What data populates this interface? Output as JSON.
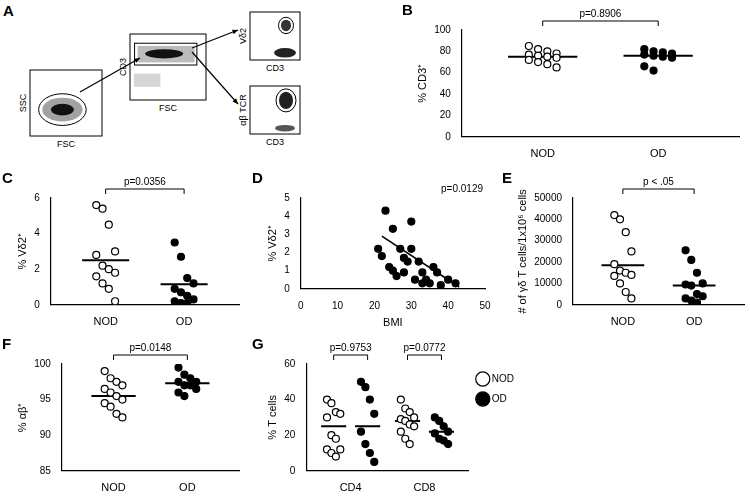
{
  "gating_diagram": {
    "panel_label": "A",
    "plots": [
      {
        "x_label": "FSC",
        "y_label": "SSC"
      },
      {
        "x_label": "FSC",
        "y_label": "CD3"
      },
      {
        "x_label": "CD3",
        "y_label": "Vδ2"
      },
      {
        "x_label": "CD3",
        "y_label": "αβ TCR"
      }
    ]
  },
  "chart_data": [
    {
      "type": "strip",
      "panel_label": "B",
      "y_label": "% CD3⁺",
      "ylim": [
        0,
        100
      ],
      "yticks": [
        0,
        20,
        40,
        60,
        80,
        100
      ],
      "grid": false,
      "groups": [
        {
          "category": "NOD",
          "marker": "open",
          "color": "#000000",
          "values": [
            85,
            82,
            80,
            78,
            77,
            76,
            75,
            74,
            72,
            70,
            68,
            65
          ],
          "mean": 75
        },
        {
          "category": "OD",
          "marker": "filled",
          "color": "#000000",
          "values": [
            82,
            80,
            79,
            78,
            77,
            76,
            75,
            74,
            66,
            62
          ],
          "mean": 76
        }
      ],
      "comparisons": [
        {
          "text": "p=0.8906",
          "between": [
            "NOD",
            "OD"
          ]
        }
      ]
    },
    {
      "type": "strip",
      "panel_label": "C",
      "y_label": "% Vδ2⁺",
      "ylim": [
        0,
        6
      ],
      "yticks": [
        0,
        2,
        4,
        6
      ],
      "grid": false,
      "groups": [
        {
          "category": "NOD",
          "marker": "open",
          "color": "#000000",
          "values": [
            5.6,
            5.4,
            4.5,
            3.0,
            2.8,
            2.2,
            2.0,
            1.8,
            1.6,
            1.2,
            0.9,
            0.2
          ],
          "mean": 2.5
        },
        {
          "category": "OD",
          "marker": "filled",
          "color": "#000000",
          "values": [
            3.5,
            2.7,
            1.5,
            1.2,
            0.9,
            0.7,
            0.5,
            0.3,
            0.2,
            0.1,
            0.1
          ],
          "mean": 1.15
        }
      ],
      "comparisons": [
        {
          "text": "p=0.0356",
          "between": [
            "NOD",
            "OD"
          ]
        }
      ]
    },
    {
      "type": "scatter",
      "panel_label": "D",
      "x_label": "BMI",
      "y_label": "% Vδ2⁺",
      "xlim": [
        0,
        50
      ],
      "xticks": [
        0,
        10,
        20,
        30,
        40,
        50
      ],
      "ylim": [
        0,
        5
      ],
      "yticks": [
        0,
        1,
        2,
        3,
        4,
        5
      ],
      "grid": false,
      "x": [
        21,
        22,
        23,
        24,
        25,
        25,
        26,
        27,
        28,
        28,
        29,
        30,
        30,
        31,
        32,
        33,
        33,
        34,
        35,
        36,
        37,
        38,
        40,
        42
      ],
      "values": [
        2.2,
        1.8,
        4.3,
        1.2,
        1.0,
        3.3,
        0.7,
        2.2,
        1.7,
        0.9,
        1.5,
        3.7,
        2.2,
        0.5,
        1.5,
        0.9,
        0.3,
        0.5,
        0.3,
        1.2,
        0.9,
        0.2,
        0.5,
        0.3
      ],
      "marker": "filled",
      "color": "#000000",
      "fit_line": {
        "x": [
          22,
          43
        ],
        "y": [
          2.9,
          0.1
        ]
      },
      "annotation": "p=0.0129"
    },
    {
      "type": "strip",
      "panel_label": "E",
      "y_label": "# of γδ T cells/1x10⁶ cells",
      "ylim": [
        0,
        50000
      ],
      "yticks": [
        0,
        10000,
        20000,
        30000,
        40000,
        50000
      ],
      "grid": false,
      "groups": [
        {
          "category": "NOD",
          "marker": "open",
          "color": "#000000",
          "values": [
            42000,
            40000,
            34000,
            25000,
            19000,
            16000,
            15000,
            14000,
            13500,
            10000,
            6000,
            3000
          ],
          "mean": 18500
        },
        {
          "category": "OD",
          "marker": "filled",
          "color": "#000000",
          "values": [
            25500,
            21000,
            15000,
            10000,
            9500,
            9000,
            5000,
            4000,
            3000,
            2000,
            1000
          ],
          "mean": 9000
        }
      ],
      "comparisons": [
        {
          "text": "p < .05",
          "between": [
            "NOD",
            "OD"
          ]
        }
      ]
    },
    {
      "type": "strip",
      "panel_label": "F",
      "y_label": "% αβ⁺",
      "ylim": [
        85,
        100
      ],
      "yticks": [
        85,
        90,
        95,
        100
      ],
      "grid": false,
      "groups": [
        {
          "category": "NOD",
          "marker": "open",
          "color": "#000000",
          "values": [
            99,
            98,
            97.5,
            97,
            96.5,
            96,
            95.5,
            95,
            94.5,
            94,
            93,
            92.5
          ],
          "mean": 95.5
        },
        {
          "category": "OD",
          "marker": "filled",
          "color": "#000000",
          "values": [
            99.5,
            98.5,
            98,
            97.5,
            97.5,
            97,
            97,
            96.5,
            96,
            95.5
          ],
          "mean": 97.3
        }
      ],
      "comparisons": [
        {
          "text": "p=0.0148",
          "between": [
            "NOD",
            "OD"
          ]
        }
      ]
    },
    {
      "type": "strip",
      "panel_label": "G",
      "y_label": "% T cells",
      "ylim": [
        0,
        60
      ],
      "yticks": [
        0,
        20,
        40,
        60
      ],
      "grid": false,
      "legend": "right",
      "categories": [
        "CD4",
        "CD8"
      ],
      "series": [
        {
          "name": "NOD",
          "marker": "open",
          "color": "#000000",
          "values": [
            [
              40,
              38,
              33,
              32,
              30,
              20,
              18,
              12,
              12,
              10,
              8
            ],
            [
              40,
              35,
              33,
              30,
              29,
              28,
              26,
              25,
              22,
              18,
              15
            ]
          ],
          "means": [
            25,
            28
          ]
        },
        {
          "name": "OD",
          "marker": "filled",
          "color": "#000000",
          "values": [
            [
              50,
              47,
              40,
              32,
              22,
              15,
              10,
              5
            ],
            [
              30,
              28,
              25,
              22,
              21,
              18,
              17,
              15
            ]
          ],
          "means": [
            25,
            22
          ]
        }
      ],
      "comparisons": [
        {
          "text": "p=0.9753",
          "category": "CD4"
        },
        {
          "text": "p=0.0772",
          "category": "CD8"
        }
      ]
    }
  ]
}
